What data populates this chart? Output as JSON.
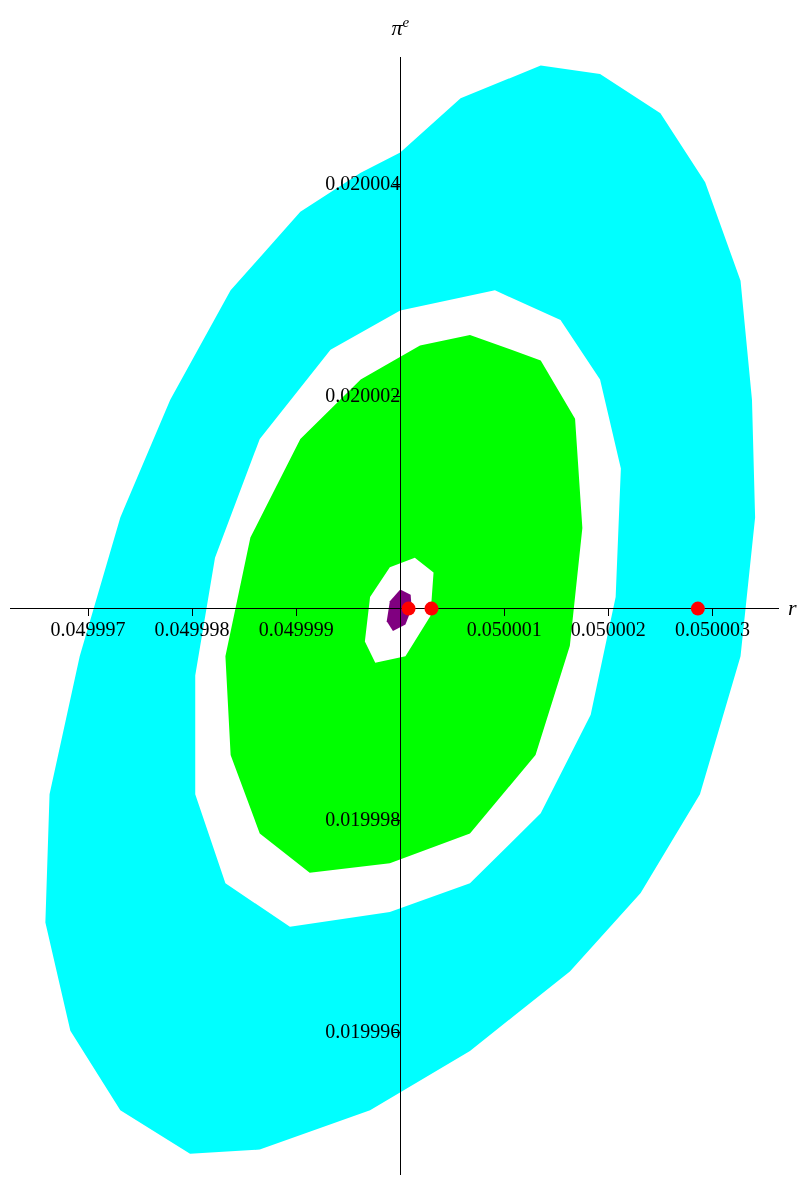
{
  "chart_data": {
    "type": "area",
    "xlabel": "r",
    "ylabel": "π$^{e}$",
    "xlim": [
      0.04999625,
      0.05000363
    ],
    "ylim": [
      0.01999467,
      0.0200052
    ],
    "xticks": [
      0.049997,
      0.049998,
      0.049999,
      {
        "value": 0.05,
        "label": null
      },
      0.050001,
      0.050002,
      0.050003
    ],
    "yticks": [
      0.019996,
      0.019998,
      {
        "value": 0.02,
        "label": null
      },
      0.020002,
      0.020004
    ],
    "grid": false,
    "legend": false,
    "series": [
      {
        "color": "#00ffff",
        "x": [
          0.05,
          0.05000058,
          0.05000135,
          0.05000192,
          0.0500025,
          0.05000293,
          0.05000327,
          0.05000338,
          0.05000341,
          0.05000327,
          0.05000288,
          0.05000231,
          0.05000163,
          0.05000067,
          0.04999971,
          0.04999865,
          0.04999798,
          0.04999731,
          0.04999683,
          0.04999659,
          0.04999663,
          0.04999692,
          0.04999731,
          0.04999779,
          0.04999837,
          0.04999904,
          0.04999962,
          0.05,
          0.05000091,
          0.05,
          0.04999933,
          0.04999865,
          0.04999822,
          0.04999803,
          0.04999803,
          0.04999832,
          0.04999894,
          0.0499999,
          0.05000067,
          0.05000135,
          0.05000183,
          0.05000207,
          0.05000212,
          0.05000192,
          0.05000154,
          0.05000091
        ],
        "values": [
          0.0200043,
          0.02000481,
          0.02000512,
          0.02000504,
          0.02000467,
          0.02000402,
          0.02000309,
          0.02000197,
          0.02000086,
          0.01999955,
          0.01999825,
          0.01999732,
          0.01999658,
          0.01999583,
          0.01999527,
          0.0199949,
          0.01999486,
          0.01999527,
          0.01999602,
          0.01999704,
          0.01999825,
          0.01999955,
          0.02000086,
          0.02000197,
          0.020003,
          0.02000374,
          0.02000411,
          0.0200043,
          0.020003,
          0.02000281,
          0.02000244,
          0.0200016,
          0.02000048,
          0.01999937,
          0.01999825,
          0.01999741,
          0.019997,
          0.01999714,
          0.01999741,
          0.01999807,
          0.019999,
          0.02000011,
          0.02000132,
          0.02000216,
          0.02000272,
          0.020003
        ]
      },
      {
        "color": "#00ff00",
        "x": [
          0.05000067,
          0.05000135,
          0.05000168,
          0.05000175,
          0.05000163,
          0.0500013,
          0.05000067,
          0.0499999,
          0.04999913,
          0.04999865,
          0.04999837,
          0.04999832,
          0.04999856,
          0.04999904,
          0.04999962,
          0.05000019,
          0.05000067,
          0.05000014,
          0.0499999,
          0.04999971,
          0.04999966,
          0.04999976,
          0.05000005,
          0.05000029,
          0.05000032,
          0.05000014
        ],
        "values": [
          0.02000258,
          0.02000234,
          0.02000179,
          0.02000076,
          0.01999965,
          0.01999862,
          0.01999788,
          0.0199976,
          0.01999751,
          0.01999788,
          0.01999862,
          0.01999955,
          0.02000067,
          0.0200016,
          0.02000216,
          0.02000248,
          0.02000258,
          0.02000048,
          0.02000039,
          0.02000011,
          0.01999969,
          0.01999949,
          0.01999955,
          0.01999993,
          0.02000034,
          0.02000048
        ]
      },
      {
        "color": "#800080",
        "x": [
          0.05,
          0.0500001,
          0.05000011,
          0.05000005,
          0.04999993,
          0.04999987,
          0.0499999
        ],
        "values": [
          0.02000018,
          0.02000013,
          0.02,
          0.01999985,
          0.01999979,
          0.01999988,
          0.02000007
        ]
      },
      {
        "type": "scatter",
        "marker": "circle",
        "color": "#ff0000",
        "x": [
          0.05000008,
          0.0500003,
          0.05000286
        ],
        "values": [
          0.02,
          0.02,
          0.02
        ]
      }
    ]
  }
}
